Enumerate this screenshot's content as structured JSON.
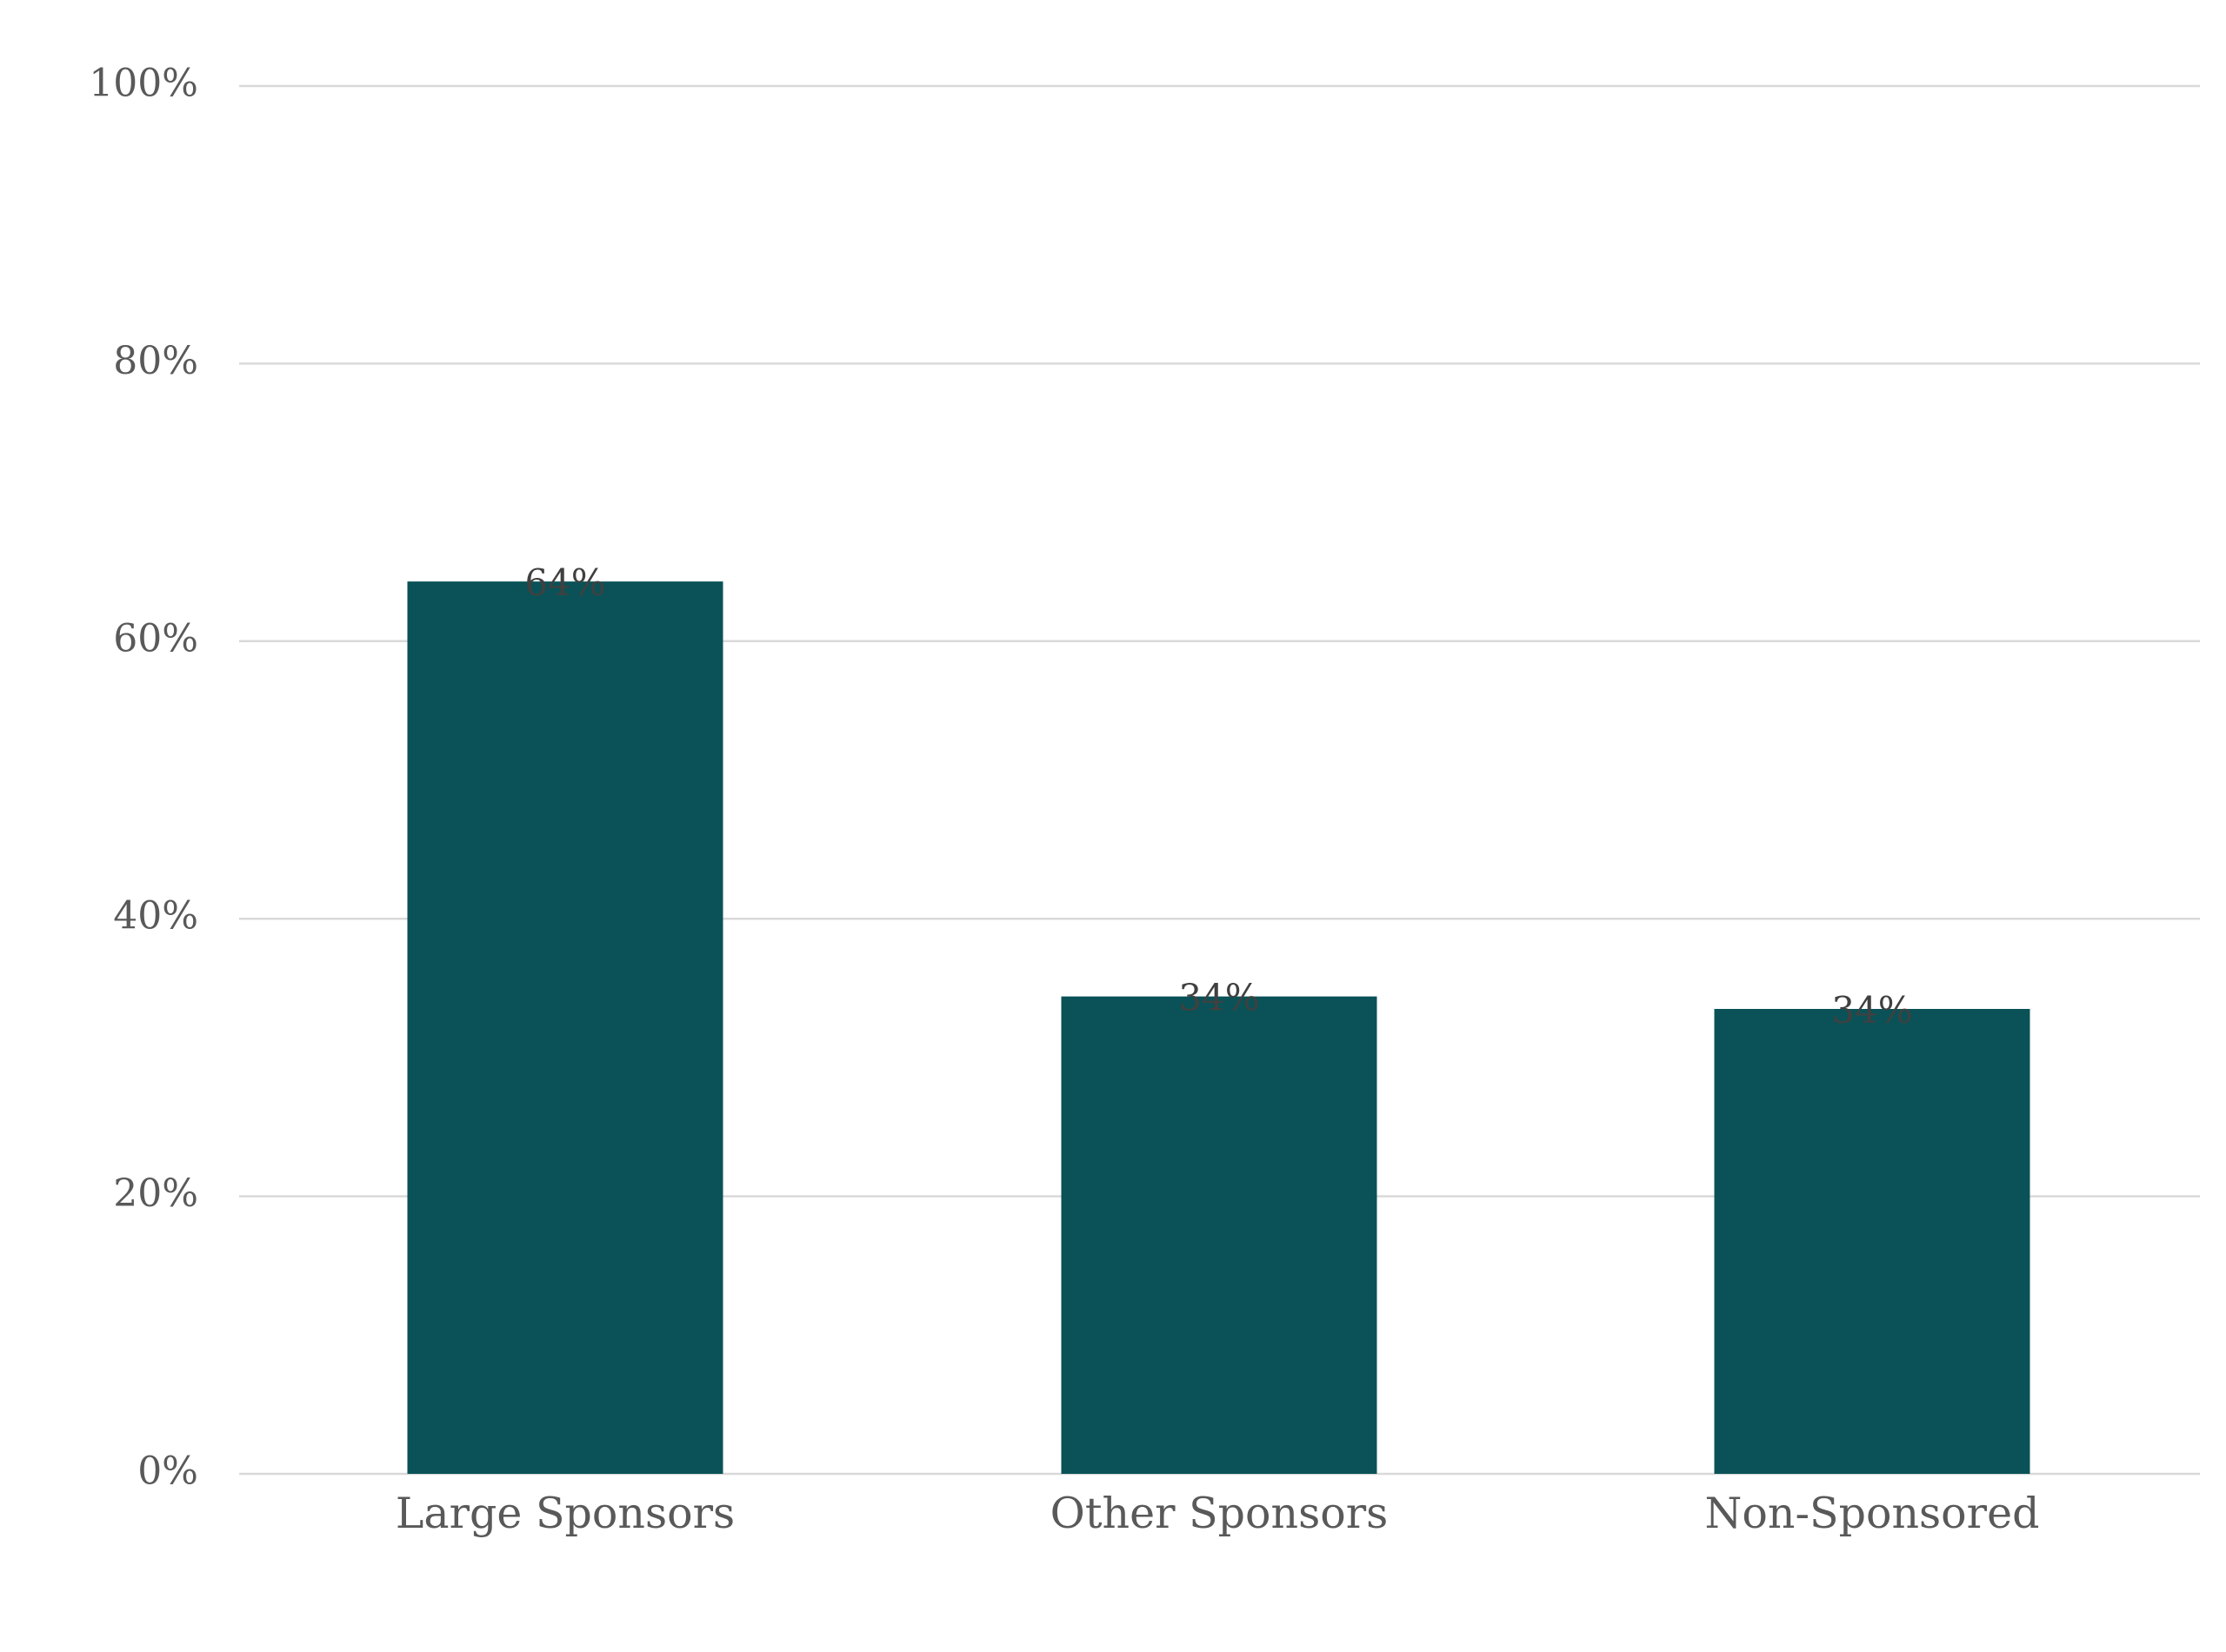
{
  "chart_data": {
    "type": "bar",
    "categories": [
      "Large Sponsors",
      "Other Sponsors",
      "Non-Sponsored"
    ],
    "values": [
      64,
      34,
      34
    ],
    "plotted_values": [
      64.3,
      34.4,
      33.5
    ],
    "value_labels": [
      "64%",
      "34%",
      "34%"
    ],
    "title": "",
    "xlabel": "",
    "ylabel": "",
    "ylim": [
      0,
      100
    ],
    "yticks": [
      0,
      20,
      40,
      60,
      80,
      100
    ],
    "ytick_labels": [
      "0%",
      "20%",
      "40%",
      "60%",
      "80%",
      "100%"
    ],
    "grid": true,
    "legend": "none",
    "colors": {
      "bar": "#0A5257",
      "gridline": "#D9D9D9",
      "axis_text": "#595959",
      "value_text": "#404040"
    }
  }
}
